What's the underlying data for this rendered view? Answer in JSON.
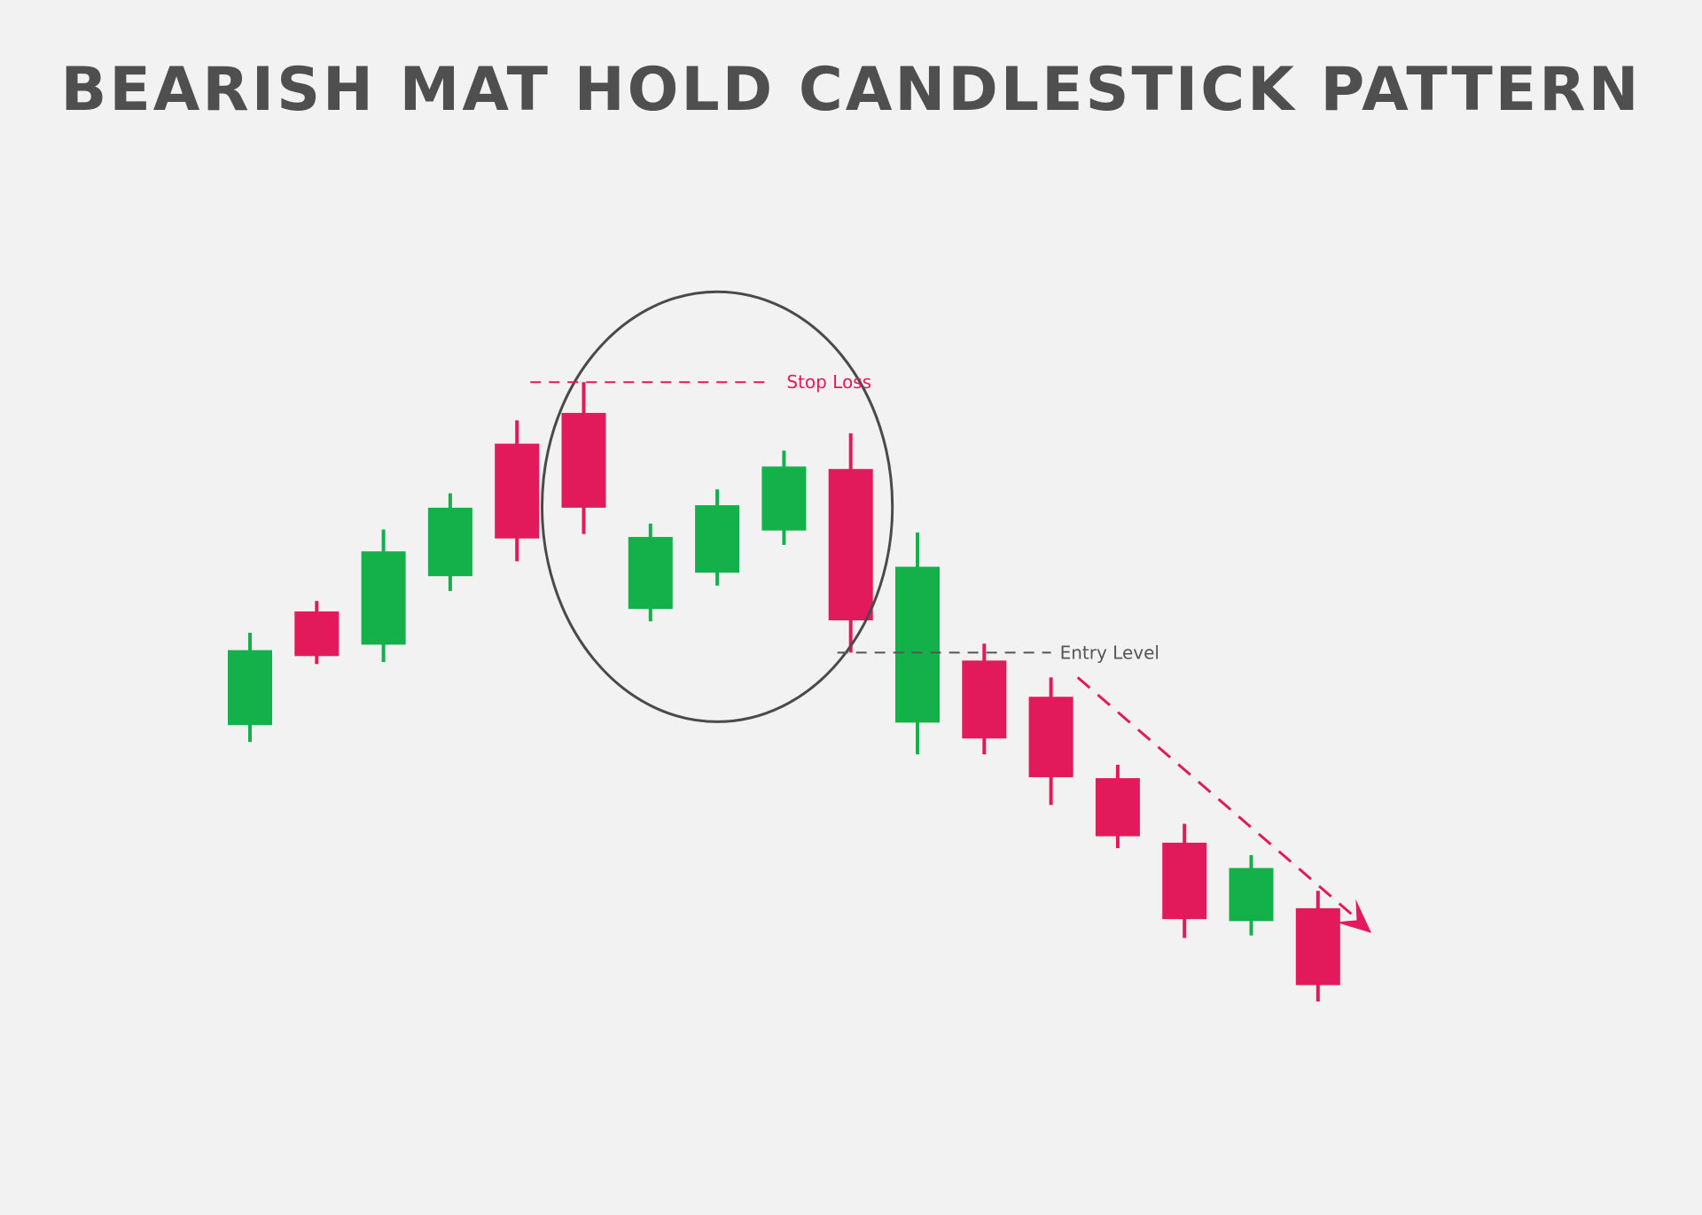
{
  "chart_data": {
    "type": "candlestick",
    "title": "BEARISH MAT HOLD CANDLESTICK PATTERN",
    "xlabel": "",
    "ylabel": "",
    "ylim": [
      0,
      100
    ],
    "grid": false,
    "legend": "none",
    "colors": {
      "bullish": "#14b14b",
      "bearish": "#e21a5b",
      "text": "#4f4f4f",
      "annotation": "#555555"
    },
    "candles": [
      {
        "index": 1,
        "direction": "bullish",
        "open": 28.9,
        "close": 44.0,
        "high": 47.5,
        "low": 25.5
      },
      {
        "index": 2,
        "direction": "bearish",
        "open": 51.8,
        "close": 42.8,
        "high": 53.9,
        "low": 41.2
      },
      {
        "index": 3,
        "direction": "bullish",
        "open": 45.1,
        "close": 63.9,
        "high": 68.3,
        "low": 41.6
      },
      {
        "index": 4,
        "direction": "bullish",
        "open": 58.9,
        "close": 72.7,
        "high": 75.6,
        "low": 55.9
      },
      {
        "index": 5,
        "direction": "bearish",
        "open": 85.6,
        "close": 66.5,
        "high": 90.3,
        "low": 61.9
      },
      {
        "index": 6,
        "direction": "bearish",
        "open": 91.8,
        "close": 72.7,
        "high": 98.0,
        "low": 67.4
      },
      {
        "index": 7,
        "direction": "bullish",
        "open": 52.3,
        "close": 66.8,
        "high": 69.5,
        "low": 49.8
      },
      {
        "index": 8,
        "direction": "bullish",
        "open": 59.6,
        "close": 73.2,
        "high": 76.4,
        "low": 57.0
      },
      {
        "index": 9,
        "direction": "bullish",
        "open": 68.1,
        "close": 81.0,
        "high": 84.2,
        "low": 65.2
      },
      {
        "index": 10,
        "direction": "bearish",
        "open": 80.5,
        "close": 50.0,
        "high": 87.7,
        "low": 43.5
      },
      {
        "index": 11,
        "direction": "bullish",
        "open": 29.4,
        "close": 60.8,
        "high": 67.7,
        "low": 23.0
      },
      {
        "index": 12,
        "direction": "bearish",
        "open": 41.9,
        "close": 26.2,
        "high": 45.3,
        "low": 23.0
      },
      {
        "index": 13,
        "direction": "bearish",
        "open": 34.6,
        "close": 18.4,
        "high": 38.5,
        "low": 12.8
      },
      {
        "index": 14,
        "direction": "bearish",
        "open": 18.2,
        "close": 6.5,
        "high": 20.9,
        "low": 4.1
      },
      {
        "index": 15,
        "direction": "bearish",
        "open": 5.2,
        "close": -10.2,
        "high": 9.0,
        "low": -14.0
      },
      {
        "index": 16,
        "direction": "bullish",
        "open": -10.6,
        "close": 0.1,
        "high": 2.7,
        "low": -13.5
      },
      {
        "index": 17,
        "direction": "bearish",
        "open": -8.0,
        "close": -23.5,
        "high": -4.5,
        "low": -26.8
      }
    ],
    "highlight": {
      "candles": [
        6,
        10
      ]
    },
    "annotations": {
      "stop_loss": {
        "label": "Stop Loss",
        "level": 98.0,
        "from_index": 5.2,
        "to_index": 8.8
      },
      "entry_level": {
        "label": "Entry Level",
        "level": 43.5,
        "from_index": 9.8,
        "to_index": 13.0
      },
      "trend_arrow": {
        "direction": "down",
        "from_index": 13.4,
        "from_level": 38.5,
        "to_index": 17.8,
        "to_level": -13.0
      }
    }
  }
}
